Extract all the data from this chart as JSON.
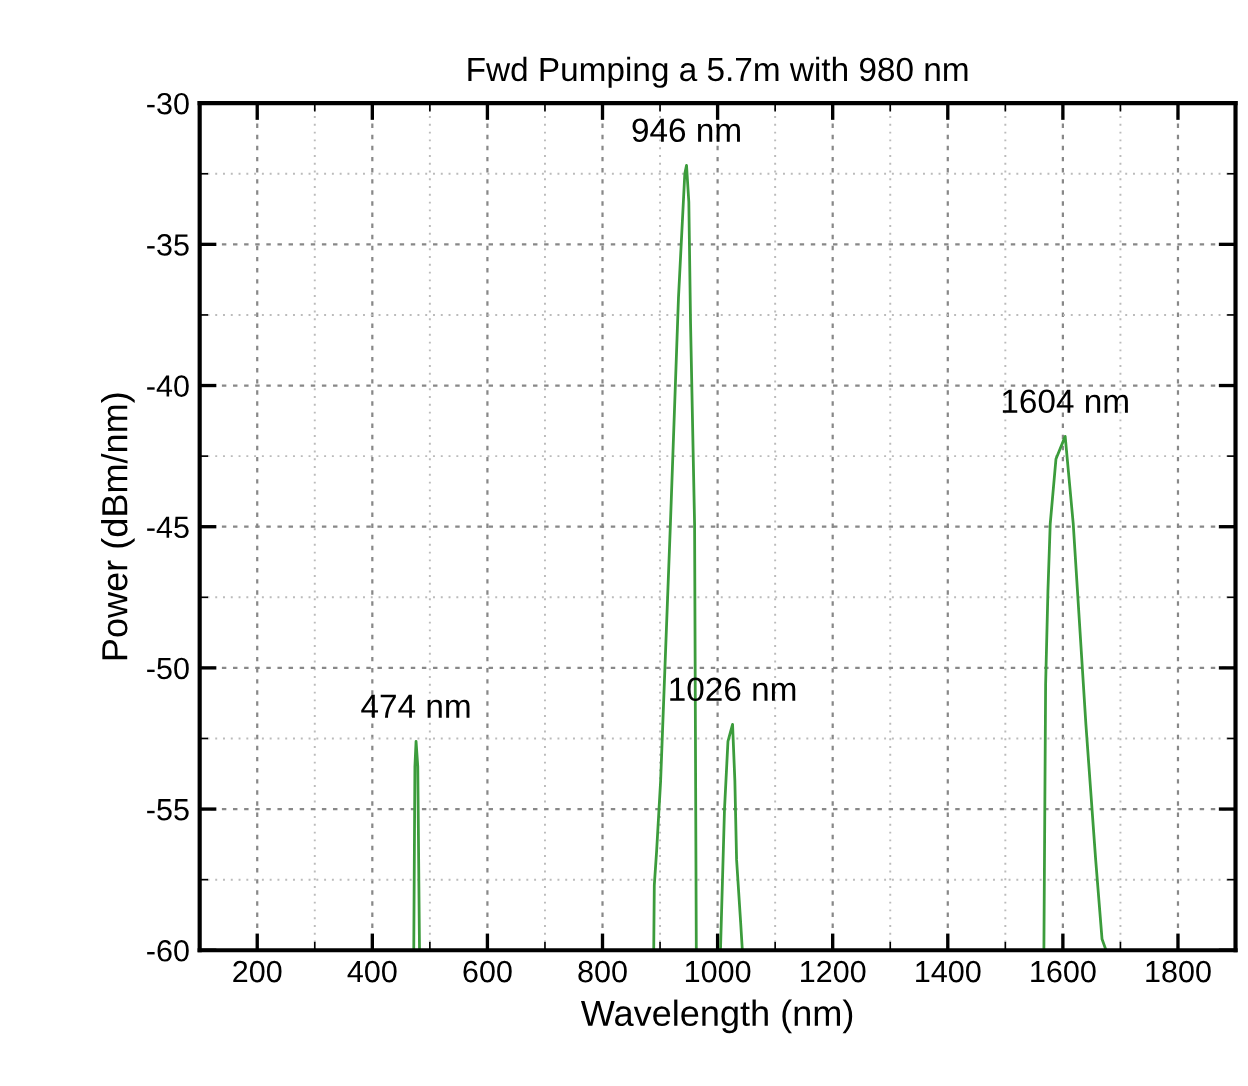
{
  "chart_data": {
    "type": "line",
    "title": "Fwd Pumping a 5.7m with 980 nm",
    "xlabel": "Wavelength (nm)",
    "ylabel": "Power (dBm/nm)",
    "x": [
      472,
      474,
      476,
      479,
      482,
      null,
      889,
      890,
      894,
      901,
      918,
      932,
      943,
      946,
      950,
      953,
      960,
      962,
      963,
      null,
      1005,
      1012,
      1018,
      1026,
      1030,
      1033,
      1040,
      1043,
      null,
      1567,
      1570,
      1574,
      1578,
      1588,
      1604,
      1618,
      1640,
      1657,
      1668,
      1675
    ],
    "series": [
      {
        "color": "#3c9c3c",
        "values": [
          -60,
          -53.5,
          -52.6,
          -53.5,
          -60,
          null,
          -60,
          -57.7,
          -56.5,
          -54,
          -44.9,
          -36.9,
          -32.5,
          -32.2,
          -33.5,
          -37.8,
          -44.9,
          -55,
          -60,
          null,
          -60,
          -55,
          -52.6,
          -52,
          -54,
          -56.8,
          -59,
          -60,
          null,
          -60,
          -50.6,
          -47.3,
          -44.9,
          -42.6,
          -41.8,
          -44.9,
          -52,
          -56.8,
          -59.6,
          -60
        ]
      }
    ],
    "xlim": [
      100,
      1900
    ],
    "ylim": [
      -60,
      -30
    ],
    "xticks": [
      200,
      400,
      600,
      800,
      1000,
      1200,
      1400,
      1600,
      1800
    ],
    "yticks": [
      -60,
      -55,
      -50,
      -45,
      -40,
      -35,
      -30
    ],
    "grid": true,
    "legend": false,
    "marker": "none",
    "line_style": "solid",
    "annotations": [
      {
        "text": "474 nm",
        "x": 476,
        "y": -52.6
      },
      {
        "text": "946 nm",
        "x": 946,
        "y": -32.2
      },
      {
        "text": "1026 nm",
        "x": 1026,
        "y": -52
      },
      {
        "text": "1604 nm",
        "x": 1604,
        "y": -41.8
      }
    ]
  }
}
